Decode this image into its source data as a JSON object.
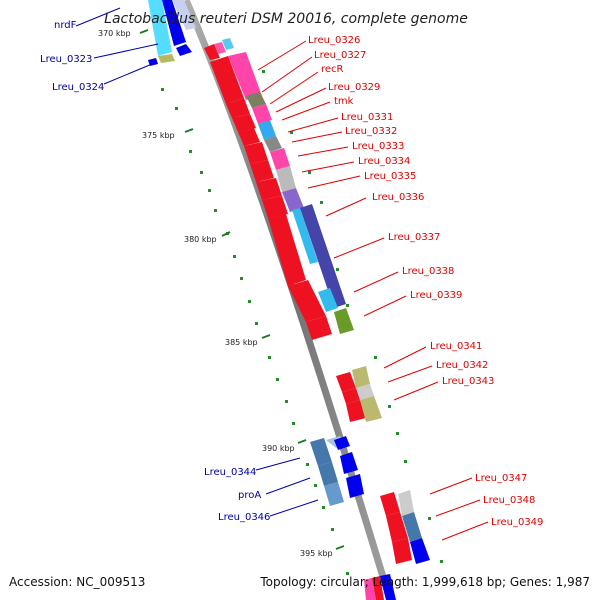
{
  "title": "Lactobacillus reuteri DSM 20016, complete genome",
  "footer": {
    "accession": "Accession: NC_009513",
    "summary": "Topology: circular; Length: 1,999,618 bp; Genes: 1,987"
  },
  "colors": {
    "backbone": "#8a8a8a",
    "tick": "#1e7a1e",
    "forward_label": "#e00000",
    "reverse_label": "#0000aa",
    "forward_gene": "#ee1122",
    "reverse_gene": "#0000ee"
  },
  "kbp_ticks": [
    {
      "kb": 370,
      "label": "370 kbp"
    },
    {
      "kb": 375,
      "label": "375 kbp"
    },
    {
      "kb": 380,
      "label": "380 kbp"
    },
    {
      "kb": 385,
      "label": "385 kbp"
    },
    {
      "kb": 390,
      "label": "390 kbp"
    },
    {
      "kb": 395,
      "label": "395 kbp"
    }
  ],
  "reverse_labels": [
    {
      "name": "nrdF"
    },
    {
      "name": "Lreu_0323"
    },
    {
      "name": "Lreu_0324"
    },
    {
      "name": "Lreu_0344"
    },
    {
      "name": "proA"
    },
    {
      "name": "Lreu_0346"
    }
  ],
  "forward_labels": [
    {
      "name": "Lreu_0326"
    },
    {
      "name": "Lreu_0327"
    },
    {
      "name": "recR"
    },
    {
      "name": "Lreu_0329"
    },
    {
      "name": "tmk"
    },
    {
      "name": "Lreu_0331"
    },
    {
      "name": "Lreu_0332"
    },
    {
      "name": "Lreu_0333"
    },
    {
      "name": "Lreu_0334"
    },
    {
      "name": "Lreu_0335"
    },
    {
      "name": "Lreu_0336"
    },
    {
      "name": "Lreu_0337"
    },
    {
      "name": "Lreu_0338"
    },
    {
      "name": "Lreu_0339"
    },
    {
      "name": "Lreu_0341"
    },
    {
      "name": "Lreu_0342"
    },
    {
      "name": "Lreu_0343"
    },
    {
      "name": "Lreu_0347"
    },
    {
      "name": "Lreu_0348"
    },
    {
      "name": "Lreu_0349"
    }
  ]
}
